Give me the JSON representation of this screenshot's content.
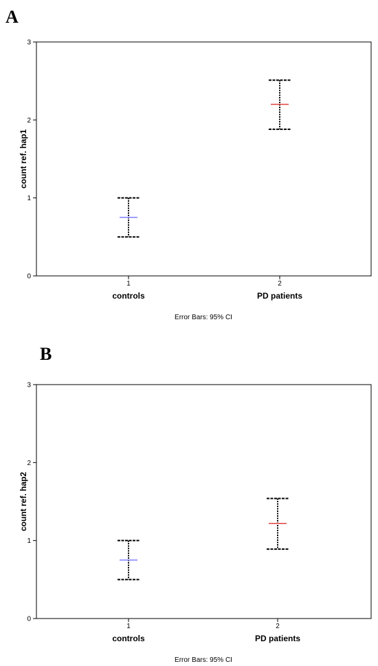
{
  "chart_data": [
    {
      "type": "errorbar",
      "panel": "A",
      "ylabel": "count ref. hap1",
      "ylim": [
        0,
        3
      ],
      "yticks": [
        "0",
        "1",
        "2",
        "3"
      ],
      "x_ticks": [
        "1",
        "2"
      ],
      "categories": [
        "controls",
        "PD patients"
      ],
      "footnote": "Error Bars: 95% CI",
      "points": [
        {
          "category": "controls",
          "mean": 0.75,
          "ci_low": 0.5,
          "ci_high": 1.0,
          "color": "#7f7fff"
        },
        {
          "category": "PD patients",
          "mean": 2.2,
          "ci_low": 1.88,
          "ci_high": 2.51,
          "color": "#e0403f"
        }
      ]
    },
    {
      "type": "errorbar",
      "panel": "B",
      "ylabel": "count ref. hap2",
      "ylim": [
        0,
        3
      ],
      "yticks": [
        "0",
        "1",
        "2",
        "3"
      ],
      "x_ticks": [
        "1",
        "2"
      ],
      "categories": [
        "controls",
        "PD patients"
      ],
      "footnote": "Error Bars: 95% CI",
      "points": [
        {
          "category": "controls",
          "mean": 0.75,
          "ci_low": 0.5,
          "ci_high": 1.0,
          "color": "#7f7fff"
        },
        {
          "category": "PD patients",
          "mean": 1.22,
          "ci_low": 0.89,
          "ci_high": 1.54,
          "color": "#e0403f"
        }
      ]
    }
  ]
}
